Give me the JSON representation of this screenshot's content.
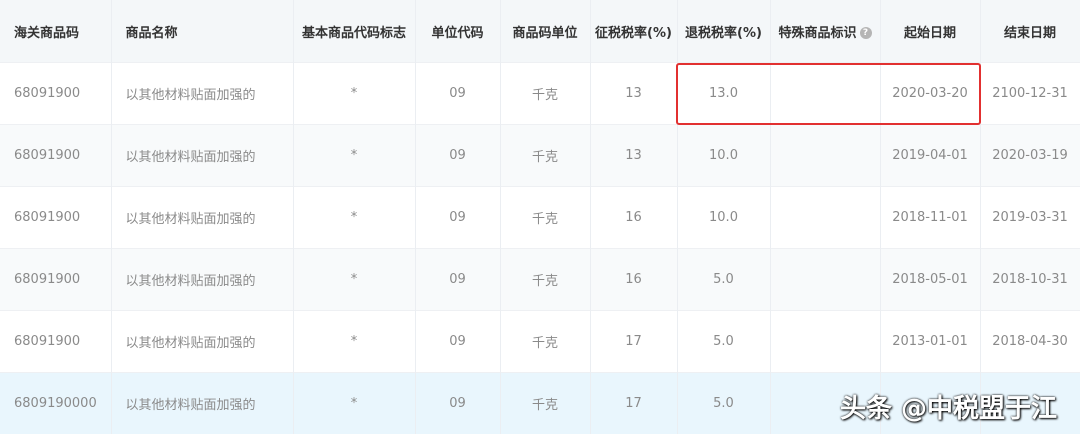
{
  "headers": [
    "海关商品码",
    "商品名称",
    "基本商品代码标志",
    "单位代码",
    "商品码单位",
    "征税税率(%)",
    "退税税率(%)",
    "特殊商品标识",
    "起始日期",
    "结束日期"
  ],
  "rows": [
    [
      "68091900",
      "以其他材料贴面加强的",
      "*",
      "09",
      "千克",
      "13",
      "13.0",
      "",
      "2020-03-20",
      "2100-12-31"
    ],
    [
      "68091900",
      "以其他材料贴面加强的",
      "*",
      "09",
      "千克",
      "13",
      "10.0",
      "",
      "2019-04-01",
      "2020-03-19"
    ],
    [
      "68091900",
      "以其他材料贴面加强的",
      "*",
      "09",
      "千克",
      "16",
      "10.0",
      "",
      "2018-11-01",
      "2019-03-31"
    ],
    [
      "68091900",
      "以其他材料贴面加强的",
      "*",
      "09",
      "千克",
      "16",
      "5.0",
      "",
      "2018-05-01",
      "2018-10-31"
    ],
    [
      "68091900",
      "以其他材料贴面加强的",
      "*",
      "09",
      "千克",
      "17",
      "5.0",
      "",
      "2013-01-01",
      "2018-04-30"
    ],
    [
      "6809190000",
      "以其他材料贴面加强的",
      "*",
      "09",
      "千克",
      "17",
      "5.0",
      "",
      "",
      ""
    ]
  ],
  "help_icon": "?",
  "highlight_color": "#e23030",
  "watermark": "头条 @中税盟于江"
}
